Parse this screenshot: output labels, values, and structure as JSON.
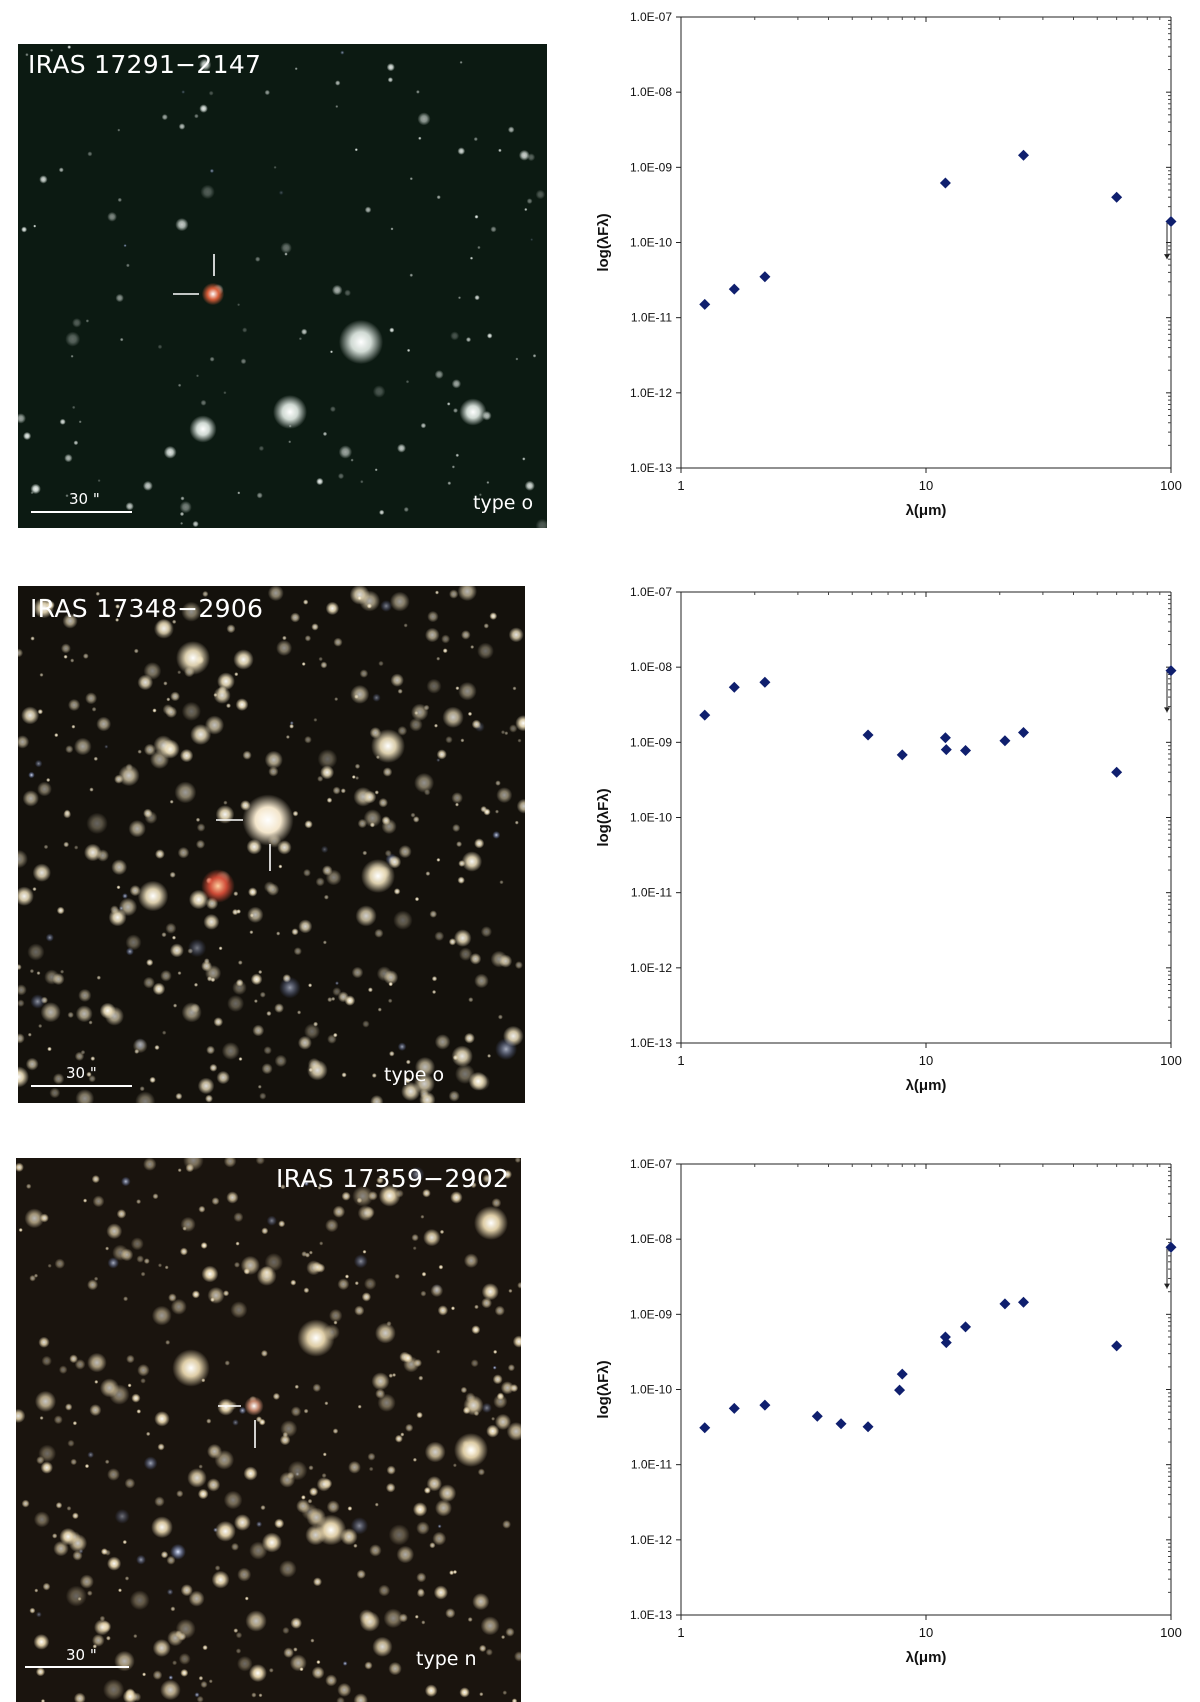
{
  "images": [
    {
      "title": "IRAS 17291−2147",
      "type_label": "type o",
      "scale_label": "30 \"",
      "background_color": "#0c1a12",
      "star_tint": "#e6efe9",
      "target_color": "#e0603a"
    },
    {
      "title": "IRAS 17348−2906",
      "type_label": "type o",
      "scale_label": "30 \"",
      "background_color": "#14110c",
      "star_tint": "#f1e3bf",
      "target_color": "#fff1d6"
    },
    {
      "title": "IRAS 17359−2902",
      "type_label": "type n",
      "scale_label": "30 \"",
      "background_color": "#1a140e",
      "star_tint": "#f4e2b8",
      "target_color": "#c98a70"
    }
  ],
  "chart_data": [
    {
      "type": "scatter",
      "xlabel": "λ(μm)",
      "ylabel": "log(λFλ)",
      "x_scale": "log",
      "y_scale": "log",
      "xlim": [
        1,
        100
      ],
      "ylim": [
        1e-13,
        1e-07
      ],
      "x_ticks": [
        "1",
        "10",
        "100"
      ],
      "y_ticks": [
        "1.0E-13",
        "1.0E-12",
        "1.0E-11",
        "1.0E-10",
        "1.0E-09",
        "1.0E-08",
        "1.0E-07"
      ],
      "marker_color": "#0f1f6e",
      "points": [
        {
          "x": 1.25,
          "y": 1.5e-11
        },
        {
          "x": 1.65,
          "y": 2.4e-11
        },
        {
          "x": 2.2,
          "y": 3.5e-11
        },
        {
          "x": 12,
          "y": 6.2e-10
        },
        {
          "x": 25,
          "y": 1.45e-09
        },
        {
          "x": 60,
          "y": 4e-10
        },
        {
          "x": 100,
          "y": 1.9e-10
        }
      ],
      "upper_limit": {
        "x": 100,
        "y_top": 1.9e-10,
        "y_bottom": 6e-11
      }
    },
    {
      "type": "scatter",
      "xlabel": "λ(μm)",
      "ylabel": "log(λFλ)",
      "x_scale": "log",
      "y_scale": "log",
      "xlim": [
        1,
        100
      ],
      "ylim": [
        1e-13,
        1e-07
      ],
      "x_ticks": [
        "1",
        "10",
        "100"
      ],
      "y_ticks": [
        "1.0E-13",
        "1.0E-12",
        "1.0E-11",
        "1.0E-10",
        "1.0E-09",
        "1.0E-08",
        "1.0E-07"
      ],
      "marker_color": "#0f1f6e",
      "points": [
        {
          "x": 1.25,
          "y": 2.3e-09
        },
        {
          "x": 1.65,
          "y": 5.4e-09
        },
        {
          "x": 2.2,
          "y": 6.3e-09
        },
        {
          "x": 5.8,
          "y": 1.25e-09
        },
        {
          "x": 8.0,
          "y": 6.8e-10
        },
        {
          "x": 12,
          "y": 1.15e-09
        },
        {
          "x": 12.1,
          "y": 8e-10
        },
        {
          "x": 14.5,
          "y": 7.8e-10
        },
        {
          "x": 21,
          "y": 1.05e-09
        },
        {
          "x": 25,
          "y": 1.35e-09
        },
        {
          "x": 60,
          "y": 4e-10
        },
        {
          "x": 100,
          "y": 9e-09
        }
      ],
      "upper_limit": {
        "x": 100,
        "y_top": 9e-09,
        "y_bottom": 2.5e-09
      }
    },
    {
      "type": "scatter",
      "xlabel": "λ(μm)",
      "ylabel": "log(λFλ)",
      "x_scale": "log",
      "y_scale": "log",
      "xlim": [
        1,
        100
      ],
      "ylim": [
        1e-13,
        1e-07
      ],
      "x_ticks": [
        "1",
        "10",
        "100"
      ],
      "y_ticks": [
        "1.0E-13",
        "1.0E-12",
        "1.0E-11",
        "1.0E-10",
        "1.0E-09",
        "1.0E-08",
        "1.0E-07"
      ],
      "marker_color": "#0f1f6e",
      "points": [
        {
          "x": 1.25,
          "y": 3.1e-11
        },
        {
          "x": 1.65,
          "y": 5.6e-11
        },
        {
          "x": 2.2,
          "y": 6.2e-11
        },
        {
          "x": 3.6,
          "y": 4.4e-11
        },
        {
          "x": 4.5,
          "y": 3.5e-11
        },
        {
          "x": 5.8,
          "y": 3.2e-11
        },
        {
          "x": 7.8,
          "y": 9.8e-11
        },
        {
          "x": 8.0,
          "y": 1.6e-10
        },
        {
          "x": 12,
          "y": 5e-10
        },
        {
          "x": 12.1,
          "y": 4.2e-10
        },
        {
          "x": 14.5,
          "y": 6.8e-10
        },
        {
          "x": 21,
          "y": 1.38e-09
        },
        {
          "x": 25,
          "y": 1.45e-09
        },
        {
          "x": 60,
          "y": 3.8e-10
        },
        {
          "x": 100,
          "y": 7.8e-09
        }
      ],
      "upper_limit": {
        "x": 100,
        "y_top": 7.8e-09,
        "y_bottom": 2.2e-09
      }
    }
  ]
}
